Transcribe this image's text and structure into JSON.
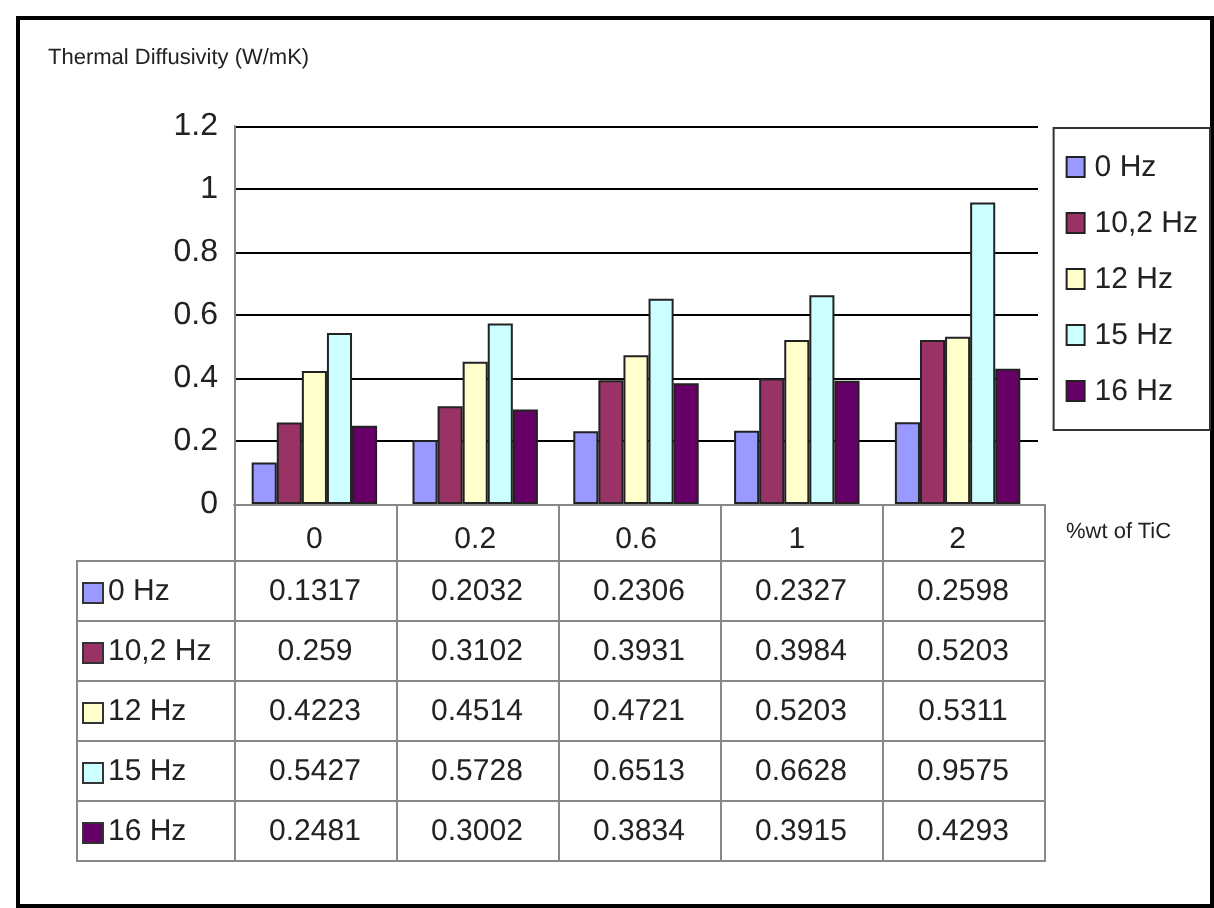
{
  "chart_data": {
    "type": "bar",
    "ylabel": "Thermal Diffusivity (W/mK)",
    "xlabel": "%wt of TiC",
    "categories": [
      "0",
      "0.2",
      "0.6",
      "1",
      "2"
    ],
    "series": [
      {
        "name": "0 Hz",
        "color": "#9999ff",
        "values": [
          0.1317,
          0.2032,
          0.2306,
          0.2327,
          0.2598
        ]
      },
      {
        "name": "10,2 Hz",
        "color": "#993366",
        "values": [
          0.259,
          0.3102,
          0.3931,
          0.3984,
          0.5203
        ]
      },
      {
        "name": "12 Hz",
        "color": "#ffffcc",
        "values": [
          0.4223,
          0.4514,
          0.4721,
          0.5203,
          0.5311
        ]
      },
      {
        "name": "15 Hz",
        "color": "#ccffff",
        "values": [
          0.5427,
          0.5728,
          0.6513,
          0.6628,
          0.9575
        ]
      },
      {
        "name": "16 Hz",
        "color": "#660066",
        "values": [
          0.2481,
          0.3002,
          0.3834,
          0.3915,
          0.4293
        ]
      }
    ],
    "ylim": [
      0,
      1.2
    ],
    "yticks": [
      0,
      0.2,
      0.4,
      0.6,
      0.8,
      1,
      1.2
    ],
    "grid": "y",
    "legend": "right",
    "data_labels": true
  }
}
